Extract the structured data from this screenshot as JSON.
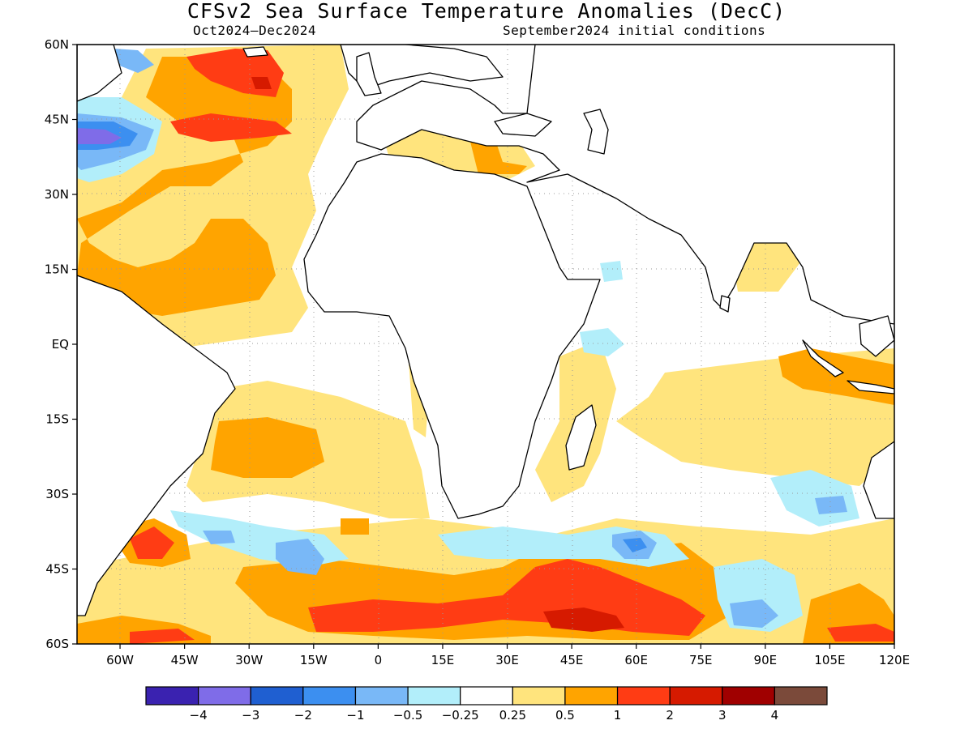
{
  "title": "CFSv2 Sea Surface Temperature Anomalies (DecC)",
  "period": "Oct2024–Dec2024",
  "initial_conditions": "September2024 initial conditions",
  "map": {
    "lat_ticks": [
      "60N",
      "45N",
      "30N",
      "15N",
      "EQ",
      "15S",
      "30S",
      "45S",
      "60S"
    ],
    "lon_ticks": [
      "60W",
      "45W",
      "30W",
      "15W",
      "0",
      "15E",
      "30E",
      "45E",
      "60E",
      "75E",
      "90E",
      "105E",
      "120E"
    ],
    "lat_range": [
      -60,
      60
    ],
    "lon_range": [
      -70,
      120
    ],
    "grid": "dotted",
    "land_color": "#ffffff",
    "coast_color": "#000000"
  },
  "colorbar": {
    "colors": [
      "#3a22b0",
      "#7f6ce8",
      "#1f5fd1",
      "#3c8ff0",
      "#79b8f7",
      "#b2eefa",
      "#ffffff",
      "#ffe47d",
      "#ffa400",
      "#ff3c14",
      "#d61a00",
      "#a00000",
      "#7b4a3a"
    ],
    "labels": [
      "−4",
      "−3",
      "−2",
      "−1",
      "−0.5",
      "−0.25",
      "0.25",
      "0.5",
      "1",
      "2",
      "3",
      "4"
    ]
  },
  "anomaly_colors": {
    "light_orange": "#ffe47d",
    "orange": "#ffa400",
    "red_orange": "#ff3c14",
    "red": "#d61a00",
    "dark_red": "#a00000",
    "brown": "#7b4a3a",
    "light_cyan": "#b2eefa",
    "light_blue": "#79b8f7",
    "blue": "#3c8ff0",
    "dark_blue": "#1f5fd1",
    "lavender": "#7f6ce8",
    "indigo": "#3a22b0"
  }
}
